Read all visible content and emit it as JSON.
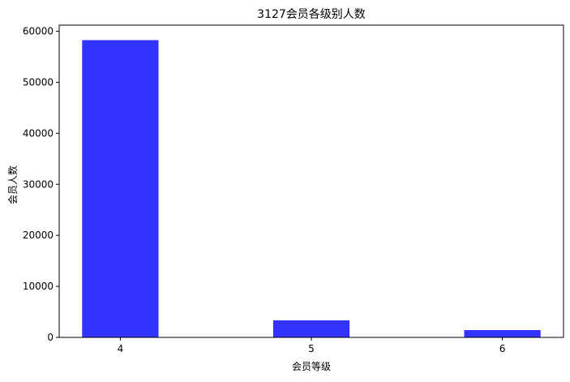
{
  "chart_data": {
    "type": "bar",
    "title": "3127会员各级别人数",
    "xlabel": "会员等级",
    "ylabel": "会员人数",
    "categories": [
      "4",
      "5",
      "6"
    ],
    "x": [
      4,
      5,
      6
    ],
    "values": [
      58260,
      3340,
      1430
    ],
    "xlim": [
      3.68,
      6.32
    ],
    "ylim": [
      0,
      61200
    ],
    "yticks": [
      0,
      10000,
      20000,
      30000,
      40000,
      50000,
      60000
    ],
    "bar_color": "#3333ff",
    "grid": false,
    "legend": "none"
  }
}
